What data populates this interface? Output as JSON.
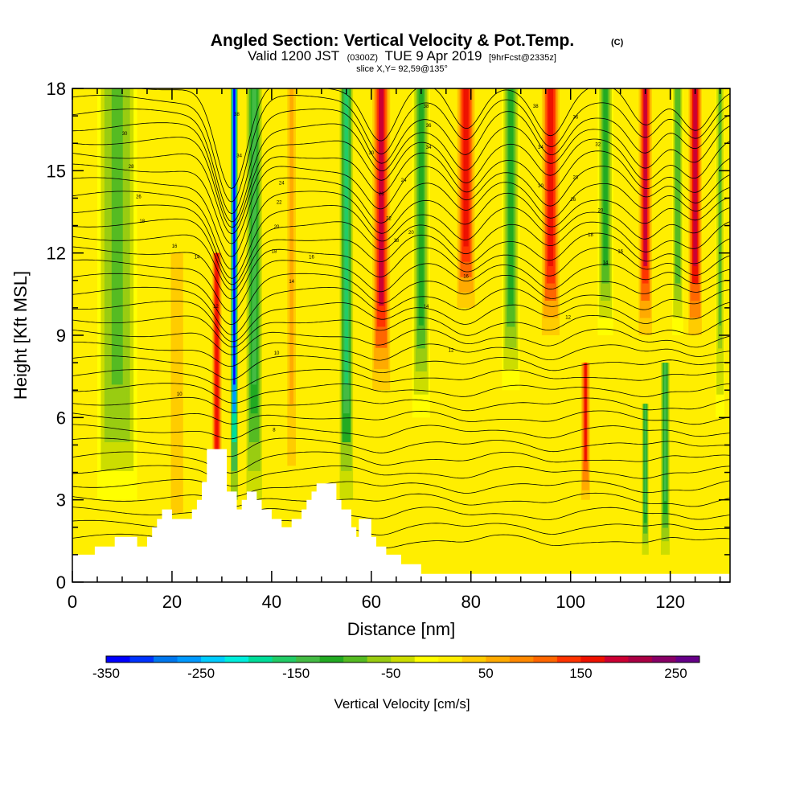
{
  "chart_data": {
    "type": "heatmap",
    "title": "Angled Section: Vertical Velocity & Pot.Temp.",
    "title_units": "(C)",
    "subtitle_parts": {
      "valid": "Valid 1200 JST",
      "utc": "(0300Z)",
      "date": "TUE 9 Apr 2019",
      "forecast": "[9hrFcst@2335z]"
    },
    "slice_label": "slice X,Y= 92,59@135°",
    "xlabel": "Distance [nm]",
    "ylabel": "Height [Kft MSL]",
    "xlim": [
      0,
      132
    ],
    "ylim": [
      0,
      18
    ],
    "x_ticks": [
      "0",
      "20",
      "40",
      "60",
      "80",
      "100",
      "120"
    ],
    "y_ticks": [
      "0",
      "3",
      "6",
      "9",
      "12",
      "15",
      "18"
    ],
    "colorbar": {
      "title": "Vertical Velocity [cm/s]",
      "tick_labels": [
        "-350",
        "-250",
        "-150",
        "-50",
        "50",
        "150",
        "250"
      ],
      "range": [
        -350,
        275
      ],
      "step": 25,
      "colors": [
        "#0000ff",
        "#0033ff",
        "#0077ee",
        "#0099ff",
        "#00ccff",
        "#00eedd",
        "#00dd99",
        "#22cc66",
        "#44bb44",
        "#22aa22",
        "#55bb22",
        "#99cc11",
        "#ccdd00",
        "#ffff00",
        "#ffee00",
        "#ffcc00",
        "#ffaa00",
        "#ff8800",
        "#ff6600",
        "#ff3300",
        "#ee1100",
        "#cc0033",
        "#aa0044",
        "#880066",
        "#660088"
      ]
    },
    "vertical_velocity_features": [
      {
        "x": 9,
        "w": 9,
        "peak": -90,
        "ymax": 18,
        "ymin": 3
      },
      {
        "x": 21,
        "w": 6,
        "peak": 40,
        "ymax": 12,
        "ymin": 0
      },
      {
        "x": 29,
        "w": 2.2,
        "peak": 170,
        "ymax": 12,
        "ymin": 2
      },
      {
        "x": 32.5,
        "w": 1.6,
        "peak": -330,
        "ymax": 18,
        "ymin": 3
      },
      {
        "x": 36.5,
        "w": 3.5,
        "peak": -140,
        "ymax": 18,
        "ymin": 3
      },
      {
        "x": 44,
        "w": 3,
        "peak": 60,
        "ymax": 18,
        "ymin": 2
      },
      {
        "x": 55,
        "w": 3,
        "peak": -170,
        "ymax": 18,
        "ymin": 3
      },
      {
        "x": 62,
        "w": 4,
        "peak": 180,
        "ymax": 18,
        "ymin": 7
      },
      {
        "x": 70,
        "w": 4,
        "peak": -110,
        "ymax": 18,
        "ymin": 6
      },
      {
        "x": 79,
        "w": 4,
        "peak": 170,
        "ymax": 18,
        "ymin": 10
      },
      {
        "x": 88,
        "w": 4,
        "peak": -120,
        "ymax": 18,
        "ymin": 7
      },
      {
        "x": 96,
        "w": 4,
        "peak": 170,
        "ymax": 18,
        "ymin": 9
      },
      {
        "x": 103,
        "w": 2,
        "peak": 150,
        "ymax": 8,
        "ymin": 3
      },
      {
        "x": 107,
        "w": 3.5,
        "peak": -110,
        "ymax": 18,
        "ymin": 9
      },
      {
        "x": 115,
        "w": 3,
        "peak": 180,
        "ymax": 18,
        "ymin": 9
      },
      {
        "x": 115,
        "w": 1.5,
        "peak": -130,
        "ymax": 6.5,
        "ymin": 1
      },
      {
        "x": 119,
        "w": 2,
        "peak": -150,
        "ymax": 8,
        "ymin": 1
      },
      {
        "x": 121.5,
        "w": 2.5,
        "peak": -100,
        "ymax": 18,
        "ymin": 9
      },
      {
        "x": 125,
        "w": 3,
        "peak": 190,
        "ymax": 18,
        "ymin": 9
      },
      {
        "x": 130,
        "w": 2,
        "peak": -80,
        "ymax": 18,
        "ymin": 6
      }
    ],
    "terrain": [
      [
        0,
        1.0
      ],
      [
        4.5,
        1.0
      ],
      [
        4.5,
        1.3
      ],
      [
        8.5,
        1.3
      ],
      [
        8.5,
        1.65
      ],
      [
        13,
        1.65
      ],
      [
        13,
        1.3
      ],
      [
        15,
        1.3
      ],
      [
        15,
        1.65
      ],
      [
        16,
        1.65
      ],
      [
        16,
        2.0
      ],
      [
        17,
        2.0
      ],
      [
        17,
        2.3
      ],
      [
        18,
        2.3
      ],
      [
        18,
        2.65
      ],
      [
        20,
        2.65
      ],
      [
        20,
        2.3
      ],
      [
        24,
        2.3
      ],
      [
        24,
        2.65
      ],
      [
        25,
        2.65
      ],
      [
        25,
        3.0
      ],
      [
        26,
        3.0
      ],
      [
        26,
        3.65
      ],
      [
        27,
        3.65
      ],
      [
        27,
        4.85
      ],
      [
        31,
        4.85
      ],
      [
        31,
        3.3
      ],
      [
        33,
        3.3
      ],
      [
        33,
        2.65
      ],
      [
        34,
        2.65
      ],
      [
        34,
        3.0
      ],
      [
        35,
        3.0
      ],
      [
        35,
        3.3
      ],
      [
        37,
        3.3
      ],
      [
        37,
        3.0
      ],
      [
        38,
        3.0
      ],
      [
        38,
        2.65
      ],
      [
        40,
        2.65
      ],
      [
        40,
        2.3
      ],
      [
        42,
        2.3
      ],
      [
        42,
        2.0
      ],
      [
        44,
        2.0
      ],
      [
        44,
        2.3
      ],
      [
        46,
        2.3
      ],
      [
        46,
        2.65
      ],
      [
        47,
        2.65
      ],
      [
        47,
        3.0
      ],
      [
        48,
        3.0
      ],
      [
        48,
        3.3
      ],
      [
        49,
        3.3
      ],
      [
        49,
        3.6
      ],
      [
        53,
        3.6
      ],
      [
        53,
        3.0
      ],
      [
        54,
        3.0
      ],
      [
        54,
        2.65
      ],
      [
        56,
        2.65
      ],
      [
        56,
        2.0
      ],
      [
        57,
        2.0
      ],
      [
        57,
        1.65
      ],
      [
        57.5,
        1.65
      ],
      [
        57.5,
        2.3
      ],
      [
        60,
        2.3
      ],
      [
        60,
        1.65
      ],
      [
        61,
        1.65
      ],
      [
        61,
        1.3
      ],
      [
        63,
        1.3
      ],
      [
        63,
        1.0
      ],
      [
        66,
        1.0
      ],
      [
        66,
        0.65
      ],
      [
        70,
        0.65
      ],
      [
        70,
        0.3
      ],
      [
        132,
        0.3
      ],
      [
        132,
        0
      ],
      [
        0,
        0
      ]
    ],
    "contour_labels": [
      {
        "x": 10.5,
        "y": 16.3,
        "text": "30"
      },
      {
        "x": 11.8,
        "y": 15.1,
        "text": "28"
      },
      {
        "x": 13.3,
        "y": 14.0,
        "text": "26"
      },
      {
        "x": 14.0,
        "y": 13.1,
        "text": "18"
      },
      {
        "x": 20.5,
        "y": 12.2,
        "text": "16"
      },
      {
        "x": 25.0,
        "y": 11.8,
        "text": "14"
      },
      {
        "x": 28.8,
        "y": 10.0,
        "text": "12"
      },
      {
        "x": 21.5,
        "y": 6.8,
        "text": "10"
      },
      {
        "x": 41.0,
        "y": 8.3,
        "text": "10"
      },
      {
        "x": 40.5,
        "y": 5.5,
        "text": "8"
      },
      {
        "x": 33.0,
        "y": 17.0,
        "text": "38"
      },
      {
        "x": 33.5,
        "y": 15.5,
        "text": "34"
      },
      {
        "x": 42.0,
        "y": 14.5,
        "text": "24"
      },
      {
        "x": 41.5,
        "y": 13.8,
        "text": "22"
      },
      {
        "x": 41.0,
        "y": 12.9,
        "text": "20"
      },
      {
        "x": 40.5,
        "y": 12.0,
        "text": "18"
      },
      {
        "x": 48.0,
        "y": 11.8,
        "text": "16"
      },
      {
        "x": 44.0,
        "y": 10.9,
        "text": "14"
      },
      {
        "x": 60.0,
        "y": 15.6,
        "text": "30"
      },
      {
        "x": 62.0,
        "y": 14.1,
        "text": "26"
      },
      {
        "x": 63.5,
        "y": 13.2,
        "text": "22"
      },
      {
        "x": 65.0,
        "y": 12.4,
        "text": "18"
      },
      {
        "x": 66.5,
        "y": 14.6,
        "text": "24"
      },
      {
        "x": 68.0,
        "y": 12.7,
        "text": "20"
      },
      {
        "x": 71.0,
        "y": 17.3,
        "text": "38"
      },
      {
        "x": 71.5,
        "y": 16.6,
        "text": "36"
      },
      {
        "x": 71.5,
        "y": 15.8,
        "text": "34"
      },
      {
        "x": 71.0,
        "y": 10.0,
        "text": "14"
      },
      {
        "x": 79.0,
        "y": 11.1,
        "text": "16"
      },
      {
        "x": 76.0,
        "y": 8.4,
        "text": "12"
      },
      {
        "x": 93.0,
        "y": 17.3,
        "text": "38"
      },
      {
        "x": 94.0,
        "y": 15.8,
        "text": "34"
      },
      {
        "x": 94.0,
        "y": 14.4,
        "text": "30"
      },
      {
        "x": 101.0,
        "y": 16.9,
        "text": "36"
      },
      {
        "x": 101.0,
        "y": 14.7,
        "text": "28"
      },
      {
        "x": 100.5,
        "y": 13.9,
        "text": "26"
      },
      {
        "x": 105.5,
        "y": 15.9,
        "text": "32"
      },
      {
        "x": 106.0,
        "y": 13.5,
        "text": "20"
      },
      {
        "x": 104.0,
        "y": 12.6,
        "text": "18"
      },
      {
        "x": 107.0,
        "y": 11.6,
        "text": "14"
      },
      {
        "x": 110.0,
        "y": 12.0,
        "text": "16"
      },
      {
        "x": 99.5,
        "y": 9.6,
        "text": "12"
      }
    ]
  }
}
